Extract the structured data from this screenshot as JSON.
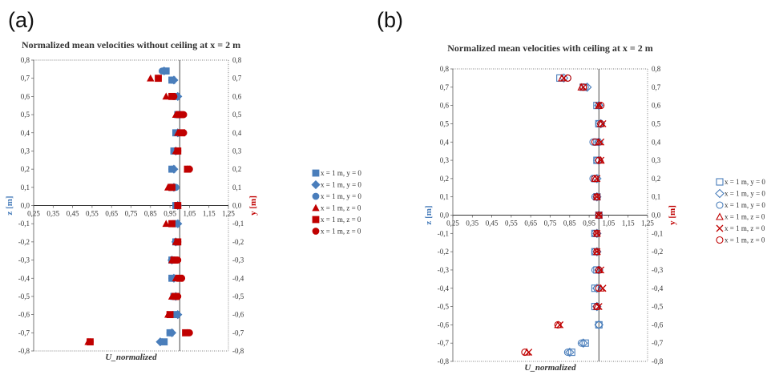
{
  "panel_labels": [
    "(a)",
    "(b)"
  ],
  "colors": {
    "blue": "#4a7ebb",
    "red": "#c00000",
    "axis": "#555555",
    "zero_line": "#333333"
  },
  "chart_data": [
    {
      "type": "scatter",
      "title": "Normalized mean velocities without ceiling at x = 2 m",
      "xlabel": "U_normalized",
      "ylabel_left": "z [m]",
      "ylabel_right": "y [m]",
      "xlim": [
        0.25,
        1.25
      ],
      "ylim": [
        -0.8,
        0.8
      ],
      "x_tick_labels": [
        "0,25",
        "0,35",
        "0,45",
        "0,55",
        "0,65",
        "0,75",
        "0,85",
        "0,95",
        "1,05",
        "1,15",
        "1,25"
      ],
      "y_tick_labels": [
        "-0,8",
        "-0,7",
        "-0,6",
        "-0,5",
        "-0,4",
        "-0,3",
        "-0,2",
        "-0,1",
        "0,0",
        "0,1",
        "0,2",
        "0,3",
        "0,4",
        "0,5",
        "0,6",
        "0,7",
        "0,8"
      ],
      "markers": "filled",
      "legend_position": "right",
      "series": [
        {
          "name": "x = 1 m, y = 0",
          "marker": "square",
          "color": "blue",
          "points": [
            [
              0.93,
              0.74
            ],
            [
              0.96,
              0.69
            ],
            [
              0.98,
              0.6
            ],
            [
              0.99,
              0.5
            ],
            [
              0.98,
              0.4
            ],
            [
              0.97,
              0.3
            ],
            [
              0.96,
              0.2
            ],
            [
              0.96,
              0.1
            ],
            [
              0.98,
              0.0
            ],
            [
              0.98,
              -0.1
            ],
            [
              0.98,
              -0.2
            ],
            [
              0.96,
              -0.3
            ],
            [
              0.96,
              -0.4
            ],
            [
              0.97,
              -0.5
            ],
            [
              0.98,
              -0.6
            ],
            [
              0.95,
              -0.7
            ],
            [
              0.92,
              -0.75
            ]
          ]
        },
        {
          "name": "x = 1 m, y = 0",
          "marker": "diamond",
          "color": "blue",
          "points": [
            [
              0.92,
              0.74
            ],
            [
              0.97,
              0.69
            ],
            [
              0.99,
              0.6
            ],
            [
              1.0,
              0.5
            ],
            [
              0.99,
              0.4
            ],
            [
              0.98,
              0.3
            ],
            [
              0.97,
              0.2
            ],
            [
              0.97,
              0.1
            ],
            [
              0.99,
              0.0
            ],
            [
              0.99,
              -0.1
            ],
            [
              0.98,
              -0.2
            ],
            [
              0.96,
              -0.3
            ],
            [
              0.97,
              -0.4
            ],
            [
              0.98,
              -0.5
            ],
            [
              0.99,
              -0.6
            ],
            [
              0.96,
              -0.7
            ],
            [
              0.9,
              -0.75
            ]
          ]
        },
        {
          "name": "x = 1 m, y = 0",
          "marker": "circle",
          "color": "blue",
          "points": [
            [
              0.91,
              0.74
            ],
            [
              0.96,
              0.69
            ],
            [
              0.98,
              0.6
            ],
            [
              0.99,
              0.5
            ],
            [
              0.99,
              0.4
            ],
            [
              0.98,
              0.3
            ],
            [
              0.96,
              0.2
            ],
            [
              0.98,
              0.1
            ],
            [
              0.99,
              0.0
            ],
            [
              0.98,
              -0.1
            ],
            [
              0.99,
              -0.2
            ],
            [
              0.97,
              -0.3
            ],
            [
              0.96,
              -0.4
            ],
            [
              0.97,
              -0.5
            ],
            [
              0.98,
              -0.6
            ],
            [
              0.95,
              -0.7
            ],
            [
              0.91,
              -0.75
            ]
          ]
        },
        {
          "name": "x = 1 m, z = 0",
          "marker": "triangle",
          "color": "red",
          "points": [
            [
              0.85,
              0.7
            ],
            [
              0.93,
              0.6
            ],
            [
              0.98,
              0.5
            ],
            [
              0.99,
              0.4
            ],
            [
              0.98,
              0.3
            ],
            [
              1.04,
              0.2
            ],
            [
              0.94,
              0.1
            ],
            [
              0.99,
              0.0
            ],
            [
              0.93,
              -0.1
            ],
            [
              0.98,
              -0.2
            ],
            [
              0.96,
              -0.3
            ],
            [
              0.98,
              -0.4
            ],
            [
              0.96,
              -0.5
            ],
            [
              0.94,
              -0.6
            ],
            [
              1.04,
              -0.7
            ],
            [
              0.53,
              -0.75
            ]
          ]
        },
        {
          "name": "x = 1 m, z = 0",
          "marker": "square",
          "color": "red",
          "points": [
            [
              0.89,
              0.7
            ],
            [
              0.96,
              0.6
            ],
            [
              1.0,
              0.5
            ],
            [
              1.01,
              0.4
            ],
            [
              0.99,
              0.3
            ],
            [
              1.04,
              0.2
            ],
            [
              0.96,
              0.1
            ],
            [
              0.99,
              0.0
            ],
            [
              0.96,
              -0.1
            ],
            [
              0.99,
              -0.2
            ],
            [
              0.97,
              -0.3
            ],
            [
              1.0,
              -0.4
            ],
            [
              0.98,
              -0.5
            ],
            [
              0.95,
              -0.6
            ],
            [
              1.03,
              -0.7
            ],
            [
              0.54,
              -0.75
            ]
          ]
        },
        {
          "name": "x = 1 m, z = 0",
          "marker": "circle",
          "color": "red",
          "points": [
            [
              0.97,
              0.6
            ],
            [
              1.02,
              0.5
            ],
            [
              1.02,
              0.4
            ],
            [
              0.99,
              0.3
            ],
            [
              1.05,
              0.2
            ],
            [
              0.95,
              0.1
            ],
            [
              0.99,
              0.0
            ],
            [
              0.99,
              -0.2
            ],
            [
              0.99,
              -0.3
            ],
            [
              1.01,
              -0.4
            ],
            [
              0.99,
              -0.5
            ],
            [
              1.05,
              -0.7
            ],
            [
              0.54,
              -0.75
            ]
          ]
        }
      ]
    },
    {
      "type": "scatter",
      "title": "Normalized mean velocities with ceiling at x = 2 m",
      "xlabel": "U_normalized",
      "ylabel_left": "z [m]",
      "ylabel_right": "y [m]",
      "xlim": [
        0.25,
        1.25
      ],
      "ylim": [
        -0.8,
        0.8
      ],
      "x_tick_labels": [
        "0,25",
        "0,35",
        "0,45",
        "0,55",
        "0,65",
        "0,75",
        "0,85",
        "0,95",
        "1,05",
        "1,15",
        "1,25"
      ],
      "y_tick_labels": [
        "-0,8",
        "-0,7",
        "-0,6",
        "-0,5",
        "-0,4",
        "-0,3",
        "-0,2",
        "-0,1",
        "0,0",
        "0,1",
        "0,2",
        "0,3",
        "0,4",
        "0,5",
        "0,6",
        "0,7",
        "0,8"
      ],
      "markers": "hollow",
      "legend_position": "right",
      "series": [
        {
          "name": "x = 1 m, y = 0",
          "marker": "square",
          "color": "blue",
          "points": [
            [
              0.8,
              0.75
            ],
            [
              0.92,
              0.7
            ],
            [
              0.99,
              0.6
            ],
            [
              1.0,
              0.5
            ],
            [
              0.99,
              0.4
            ],
            [
              0.99,
              0.3
            ],
            [
              0.98,
              0.2
            ],
            [
              0.99,
              0.1
            ],
            [
              1.0,
              0.0
            ],
            [
              0.98,
              -0.1
            ],
            [
              0.98,
              -0.2
            ],
            [
              0.99,
              -0.3
            ],
            [
              0.98,
              -0.4
            ],
            [
              0.98,
              -0.5
            ],
            [
              1.0,
              -0.6
            ],
            [
              0.93,
              -0.7
            ],
            [
              0.86,
              -0.75
            ]
          ]
        },
        {
          "name": "x = 1 m, y = 0",
          "marker": "diamond",
          "color": "blue",
          "points": [
            [
              0.82,
              0.75
            ],
            [
              0.94,
              0.7
            ],
            [
              1.0,
              0.6
            ],
            [
              1.01,
              0.5
            ],
            [
              1.0,
              0.4
            ],
            [
              1.0,
              0.3
            ],
            [
              0.99,
              0.2
            ],
            [
              0.99,
              0.1
            ],
            [
              1.0,
              0.0
            ],
            [
              0.99,
              -0.1
            ],
            [
              0.99,
              -0.2
            ],
            [
              1.0,
              -0.3
            ],
            [
              0.99,
              -0.4
            ],
            [
              0.99,
              -0.5
            ],
            [
              1.0,
              -0.6
            ],
            [
              0.92,
              -0.7
            ],
            [
              0.85,
              -0.75
            ]
          ]
        },
        {
          "name": "x = 1 m, y = 0",
          "marker": "circle",
          "color": "blue",
          "points": [
            [
              0.84,
              0.75
            ],
            [
              0.93,
              0.7
            ],
            [
              1.0,
              0.6
            ],
            [
              1.0,
              0.5
            ],
            [
              0.97,
              0.4
            ],
            [
              0.99,
              0.3
            ],
            [
              0.97,
              0.2
            ],
            [
              0.98,
              0.1
            ],
            [
              1.0,
              0.0
            ],
            [
              0.98,
              -0.1
            ],
            [
              0.98,
              -0.2
            ],
            [
              0.98,
              -0.3
            ],
            [
              0.99,
              -0.4
            ],
            [
              0.99,
              -0.5
            ],
            [
              1.0,
              -0.6
            ],
            [
              0.91,
              -0.7
            ],
            [
              0.84,
              -0.75
            ]
          ]
        },
        {
          "name": "x = 1 m, z = 0",
          "marker": "triangle",
          "color": "red",
          "points": [
            [
              0.81,
              0.75
            ],
            [
              0.91,
              0.7
            ],
            [
              1.0,
              0.6
            ],
            [
              1.01,
              0.5
            ],
            [
              1.0,
              0.4
            ],
            [
              1.01,
              0.3
            ],
            [
              0.98,
              0.2
            ],
            [
              0.99,
              0.1
            ],
            [
              1.0,
              0.0
            ],
            [
              0.99,
              -0.1
            ],
            [
              0.99,
              -0.2
            ],
            [
              1.0,
              -0.3
            ],
            [
              1.01,
              -0.4
            ],
            [
              0.99,
              -0.5
            ],
            [
              0.79,
              -0.6
            ],
            [
              0.63,
              -0.75
            ]
          ]
        },
        {
          "name": "x = 1 m, z = 0",
          "marker": "x",
          "color": "red",
          "points": [
            [
              0.82,
              0.75
            ],
            [
              0.92,
              0.7
            ],
            [
              1.0,
              0.6
            ],
            [
              1.02,
              0.5
            ],
            [
              1.01,
              0.4
            ],
            [
              1.01,
              0.3
            ],
            [
              0.99,
              0.2
            ],
            [
              0.99,
              0.1
            ],
            [
              1.0,
              0.0
            ],
            [
              0.99,
              -0.1
            ],
            [
              0.99,
              -0.2
            ],
            [
              1.01,
              -0.3
            ],
            [
              1.02,
              -0.4
            ],
            [
              1.0,
              -0.5
            ],
            [
              0.8,
              -0.6
            ],
            [
              0.64,
              -0.75
            ]
          ]
        },
        {
          "name": "x = 1 m, z = 0",
          "marker": "circle",
          "color": "red",
          "points": [
            [
              0.84,
              0.75
            ],
            [
              0.92,
              0.7
            ],
            [
              1.01,
              0.6
            ],
            [
              1.01,
              0.5
            ],
            [
              0.98,
              0.4
            ],
            [
              1.0,
              0.3
            ],
            [
              0.98,
              0.2
            ],
            [
              0.99,
              0.1
            ],
            [
              1.0,
              0.0
            ],
            [
              0.99,
              -0.1
            ],
            [
              0.99,
              -0.2
            ],
            [
              1.0,
              -0.3
            ],
            [
              1.0,
              -0.4
            ],
            [
              0.99,
              -0.5
            ],
            [
              0.79,
              -0.6
            ],
            [
              0.62,
              -0.75
            ]
          ]
        }
      ]
    }
  ]
}
